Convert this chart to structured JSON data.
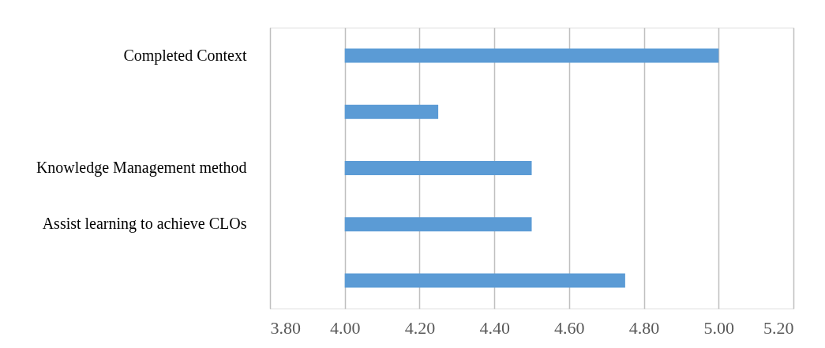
{
  "chart_data": {
    "type": "bar",
    "orientation": "horizontal",
    "categories": [
      "Completed Context",
      null,
      "Knowledge Management method",
      "Assist learning to achieve CLOs",
      null
    ],
    "base": [
      4.0,
      4.0,
      4.0,
      4.0,
      4.0
    ],
    "values": [
      1.0,
      0.25,
      0.5,
      0.5,
      0.75
    ],
    "color": "#5b9bd5",
    "xlim": [
      3.8,
      5.2
    ],
    "xticks": [
      {
        "value": 3.8,
        "label": "3.80"
      },
      {
        "value": 4.0,
        "label": "4.00"
      },
      {
        "value": 4.2,
        "label": "4.20"
      },
      {
        "value": 4.4,
        "label": "4.40"
      },
      {
        "value": 4.6,
        "label": "4.60"
      },
      {
        "value": 4.8,
        "label": "4.80"
      },
      {
        "value": 5.0,
        "label": "5.00"
      },
      {
        "value": 5.2,
        "label": "5.20"
      }
    ],
    "grid": "x"
  }
}
